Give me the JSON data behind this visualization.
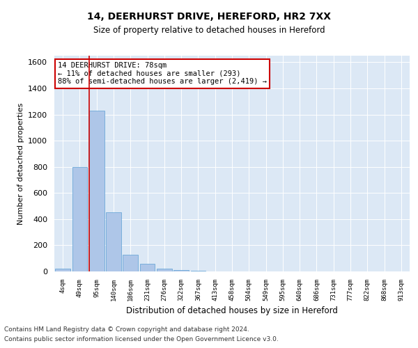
{
  "title1": "14, DEERHURST DRIVE, HEREFORD, HR2 7XX",
  "title2": "Size of property relative to detached houses in Hereford",
  "xlabel": "Distribution of detached houses by size in Hereford",
  "ylabel": "Number of detached properties",
  "categories": [
    "4sqm",
    "49sqm",
    "95sqm",
    "140sqm",
    "186sqm",
    "231sqm",
    "276sqm",
    "322sqm",
    "367sqm",
    "413sqm",
    "458sqm",
    "504sqm",
    "549sqm",
    "595sqm",
    "640sqm",
    "686sqm",
    "731sqm",
    "777sqm",
    "822sqm",
    "868sqm",
    "913sqm"
  ],
  "values": [
    20,
    800,
    1230,
    450,
    130,
    60,
    20,
    10,
    5,
    2,
    0,
    0,
    0,
    0,
    0,
    0,
    0,
    0,
    0,
    0,
    0
  ],
  "bar_color": "#aec6e8",
  "bar_edge_color": "#5a9fd4",
  "vline_x": 1.55,
  "vline_color": "#cc0000",
  "annotation_text": "14 DEERHURST DRIVE: 78sqm\n← 11% of detached houses are smaller (293)\n88% of semi-detached houses are larger (2,419) →",
  "annotation_box_color": "#ffffff",
  "annotation_box_edge": "#cc0000",
  "ylim": [
    0,
    1650
  ],
  "yticks": [
    0,
    200,
    400,
    600,
    800,
    1000,
    1200,
    1400,
    1600
  ],
  "bg_color": "#dce8f5",
  "footer1": "Contains HM Land Registry data © Crown copyright and database right 2024.",
  "footer2": "Contains public sector information licensed under the Open Government Licence v3.0."
}
